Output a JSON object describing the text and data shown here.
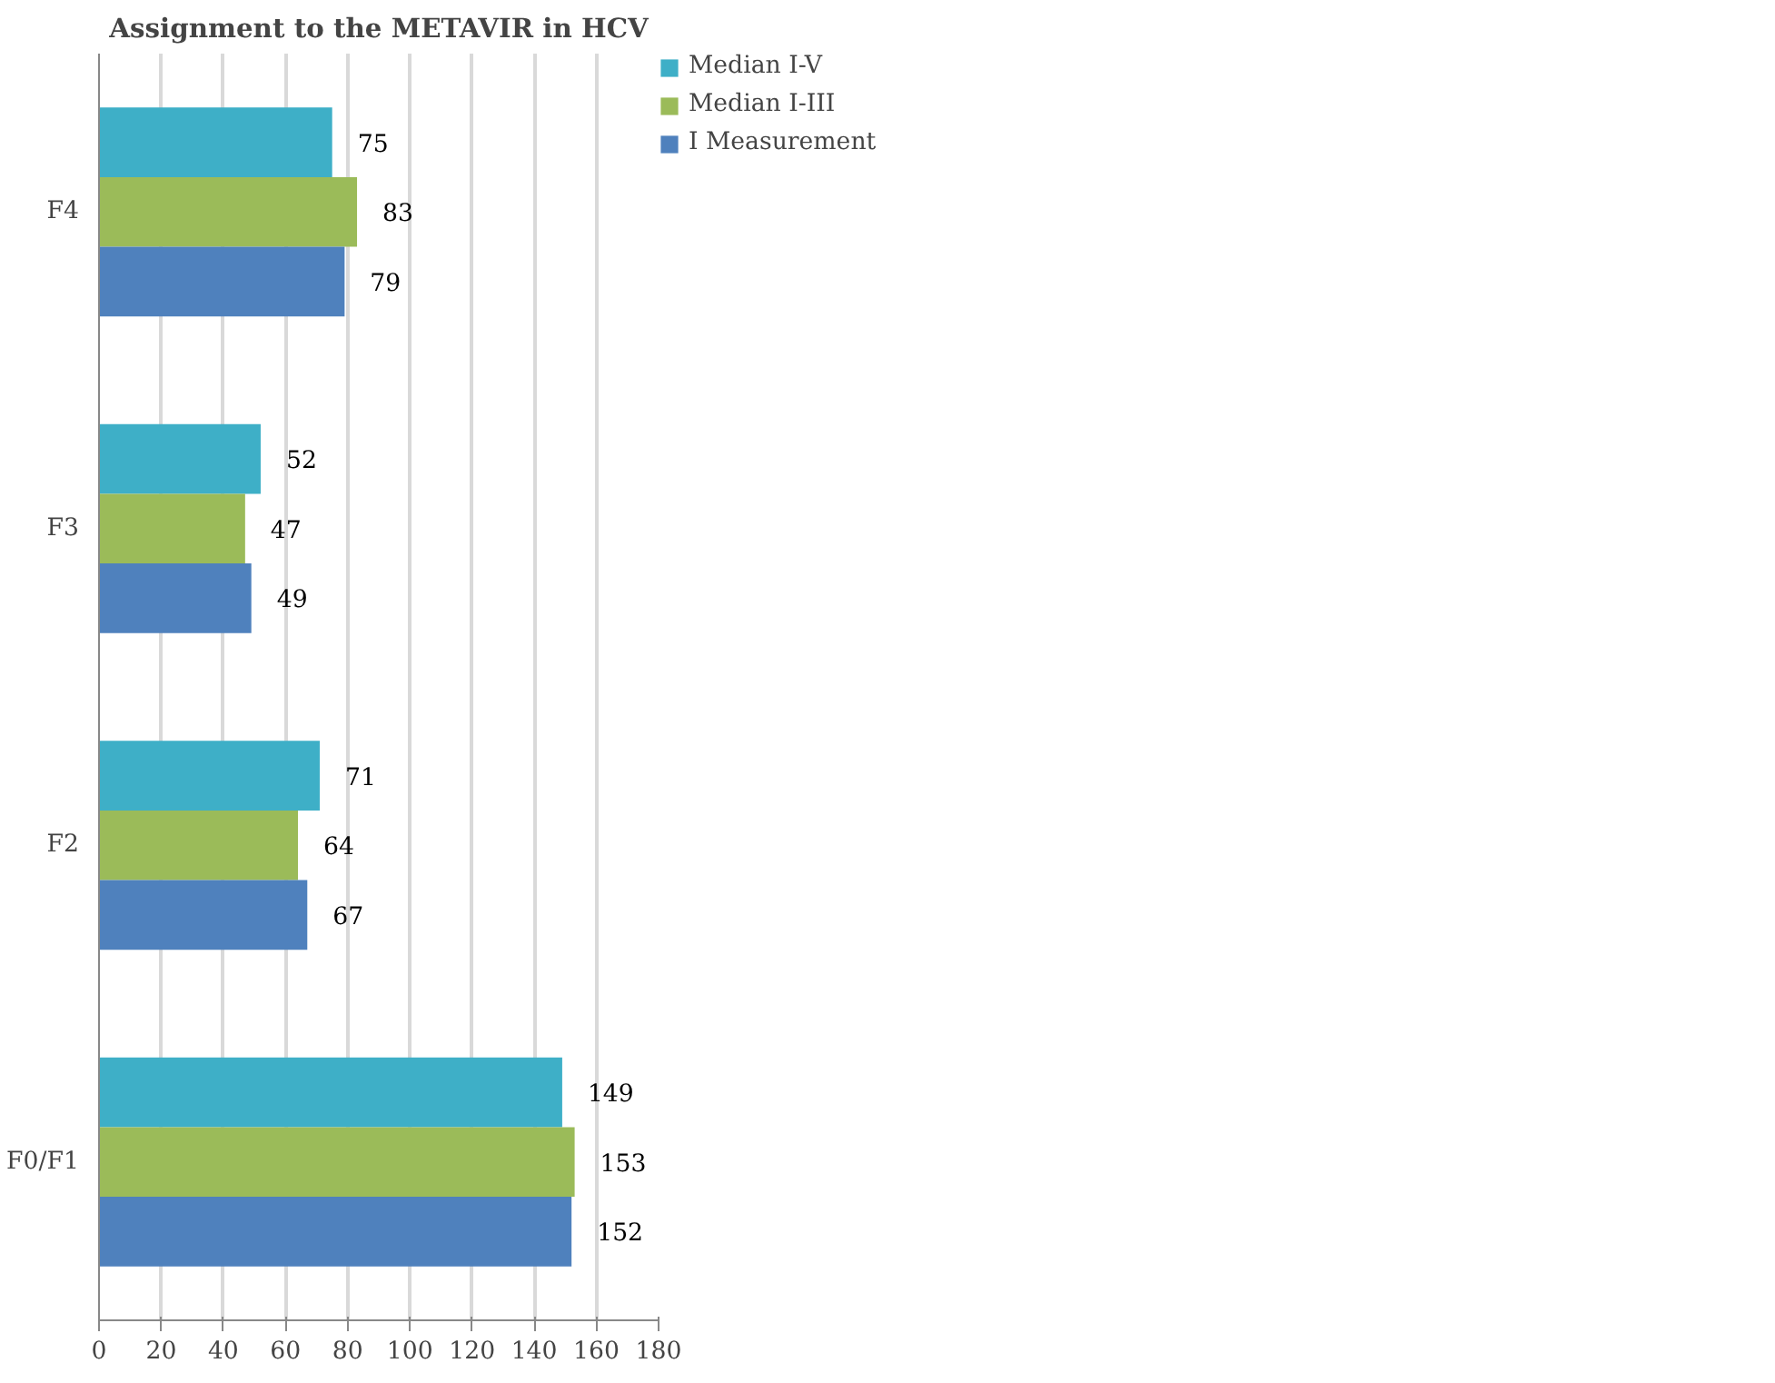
{
  "chart_data": {
    "type": "bar",
    "orientation": "horizontal",
    "title": "Assignment to the METAVIR in HCV",
    "categories": [
      "F4",
      "F3",
      "F2",
      "F0/F1"
    ],
    "series": [
      {
        "name": "Median I-V",
        "color": "#3eafc7",
        "values": [
          75,
          52,
          71,
          149
        ]
      },
      {
        "name": "Median I-III",
        "color": "#9bbb59",
        "values": [
          83,
          47,
          64,
          153
        ]
      },
      {
        "name": "I Measurement",
        "color": "#4f81bd",
        "values": [
          79,
          49,
          67,
          152
        ]
      }
    ],
    "xlim": [
      0,
      180
    ],
    "xticks": [
      0,
      20,
      40,
      60,
      80,
      100,
      120,
      140,
      160,
      180
    ],
    "grid": "x",
    "legend": "top right",
    "data_labels": true
  }
}
